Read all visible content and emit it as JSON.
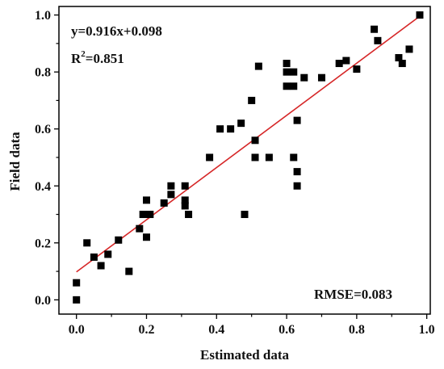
{
  "chart_data": {
    "type": "scatter",
    "title": "",
    "xlabel": "Estimated data",
    "ylabel": "Field data",
    "xlim": [
      -0.05,
      1.01
    ],
    "ylim": [
      -0.05,
      1.03
    ],
    "x_ticks": [
      "0.0",
      "0.2",
      "0.4",
      "0.6",
      "0.8",
      "1.0"
    ],
    "y_ticks": [
      "0.0",
      "0.2",
      "0.4",
      "0.6",
      "0.8",
      "1.0"
    ],
    "grid": false,
    "legend": "none",
    "series": [
      {
        "marker": "square",
        "color": "#000000",
        "points": [
          [
            0.0,
            0.0
          ],
          [
            0.0,
            0.06
          ],
          [
            0.03,
            0.2
          ],
          [
            0.05,
            0.15
          ],
          [
            0.07,
            0.12
          ],
          [
            0.09,
            0.16
          ],
          [
            0.12,
            0.21
          ],
          [
            0.15,
            0.1
          ],
          [
            0.18,
            0.25
          ],
          [
            0.19,
            0.3
          ],
          [
            0.2,
            0.35
          ],
          [
            0.2,
            0.22
          ],
          [
            0.21,
            0.3
          ],
          [
            0.25,
            0.34
          ],
          [
            0.27,
            0.37
          ],
          [
            0.27,
            0.4
          ],
          [
            0.31,
            0.4
          ],
          [
            0.31,
            0.35
          ],
          [
            0.31,
            0.33
          ],
          [
            0.32,
            0.3
          ],
          [
            0.38,
            0.5
          ],
          [
            0.41,
            0.6
          ],
          [
            0.44,
            0.6
          ],
          [
            0.47,
            0.62
          ],
          [
            0.48,
            0.3
          ],
          [
            0.5,
            0.7
          ],
          [
            0.51,
            0.56
          ],
          [
            0.51,
            0.5
          ],
          [
            0.52,
            0.82
          ],
          [
            0.55,
            0.5
          ],
          [
            0.6,
            0.83
          ],
          [
            0.6,
            0.8
          ],
          [
            0.6,
            0.75
          ],
          [
            0.62,
            0.8
          ],
          [
            0.62,
            0.75
          ],
          [
            0.62,
            0.5
          ],
          [
            0.63,
            0.63
          ],
          [
            0.63,
            0.45
          ],
          [
            0.63,
            0.4
          ],
          [
            0.65,
            0.78
          ],
          [
            0.7,
            0.78
          ],
          [
            0.75,
            0.83
          ],
          [
            0.77,
            0.84
          ],
          [
            0.8,
            0.81
          ],
          [
            0.85,
            0.95
          ],
          [
            0.86,
            0.91
          ],
          [
            0.92,
            0.85
          ],
          [
            0.93,
            0.83
          ],
          [
            0.95,
            0.88
          ],
          [
            0.98,
            1.0
          ]
        ]
      }
    ],
    "fit_line": {
      "slope": 0.916,
      "intercept": 0.098,
      "x_range": [
        0.0,
        0.98
      ],
      "color": "#d62728"
    },
    "annotations": {
      "equation": "y=0.916x+0.098",
      "r2_prefix": "R",
      "r2_sup": "2",
      "r2_value": "=0.851",
      "rmse": "RMSE=0.083"
    }
  }
}
